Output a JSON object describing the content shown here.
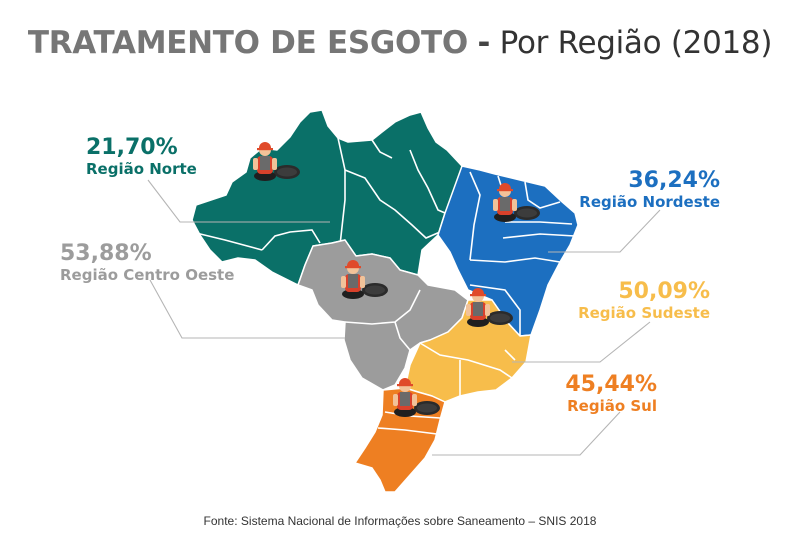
{
  "title": {
    "main": "TRATAMENTO DE ESGOTO",
    "separator": "-",
    "sub": "Por Região (2018)"
  },
  "regions": [
    {
      "id": "norte",
      "name": "Região Norte",
      "percent": "21,70%",
      "value": 21.7,
      "color": "#0a7068"
    },
    {
      "id": "nordeste",
      "name": "Região Nordeste",
      "percent": "36,24%",
      "value": 36.24,
      "color": "#1c6fc0"
    },
    {
      "id": "centro_oeste",
      "name": "Região Centro Oeste",
      "percent": "53,88%",
      "value": 53.88,
      "color": "#9c9c9c"
    },
    {
      "id": "sudeste",
      "name": "Região Sudeste",
      "percent": "50,09%",
      "value": 50.09,
      "color": "#f7bd4b"
    },
    {
      "id": "sul",
      "name": "Região Sul",
      "percent": "45,44%",
      "value": 45.44,
      "color": "#ee7f22"
    }
  ],
  "icons": [
    "sewer-worker-icon"
  ],
  "source": "Fonte: Sistema Nacional de Informações sobre Saneamento – SNIS 2018"
}
